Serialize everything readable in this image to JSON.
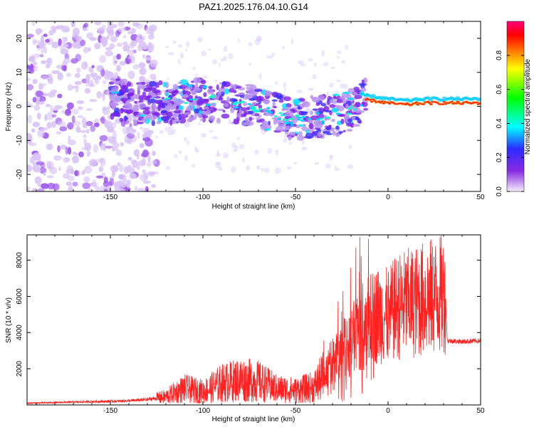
{
  "title": "PAZ1.2025.176.04.10.G14",
  "chart_data": [
    {
      "type": "heatmap",
      "xlabel": "Height of straight line (km)",
      "ylabel": "Frequency (Hz)",
      "xlim": [
        -195,
        50
      ],
      "ylim": [
        -25,
        25
      ],
      "xticks": [
        -150,
        -100,
        -50,
        0,
        50
      ],
      "yticks": [
        -20,
        -10,
        0,
        10,
        20
      ],
      "colorbar": {
        "label": "Normalized spectral amplitude",
        "range": [
          0,
          1
        ],
        "ticks": [
          "0.0",
          "0.2",
          "0.4",
          "0.6",
          "0.8"
        ],
        "tick_values": [
          0.0,
          0.2,
          0.4,
          0.6,
          0.8
        ],
        "colormap": [
          "#f5eefc",
          "#8a2be2",
          "#2b2bff",
          "#00ffff",
          "#00ff00",
          "#ffff00",
          "#ff8000",
          "#ff0000",
          "#ff0080"
        ]
      },
      "ridge": {
        "description_x": [
          -150,
          -140,
          -120,
          -100,
          -80,
          -60,
          -50,
          -40,
          -30,
          -20,
          -12,
          0,
          10,
          20,
          30,
          50
        ],
        "description_y": [
          3,
          1,
          1,
          2,
          1,
          -2,
          -4,
          -3,
          -3,
          -1,
          2,
          1,
          0.5,
          1,
          1,
          1
        ]
      }
    },
    {
      "type": "line",
      "xlabel": "Height of straight line (km)",
      "ylabel": "SNR (10 * v/v)",
      "xlim": [
        -195,
        50
      ],
      "ylim": [
        0,
        9400
      ],
      "xticks": [
        -150,
        -100,
        -50,
        0,
        50
      ],
      "yticks": [
        2000,
        4000,
        6000,
        8000
      ],
      "color": "#ff2020",
      "series": [
        {
          "x": [
            -195,
            -180,
            -160,
            -150,
            -140,
            -130,
            -120,
            -115,
            -110,
            -100,
            -90,
            -80,
            -70,
            -60,
            -50,
            -40,
            -35,
            -30,
            -25,
            -20,
            -17,
            -15,
            -12,
            -10,
            -5,
            0,
            5,
            10,
            15,
            20,
            25,
            30,
            31,
            32,
            40,
            50
          ],
          "y": [
            100,
            130,
            180,
            200,
            230,
            300,
            450,
            700,
            900,
            750,
            1200,
            1400,
            1300,
            900,
            800,
            1000,
            1600,
            2500,
            3000,
            3500,
            4000,
            4200,
            4300,
            4700,
            5000,
            4900,
            5400,
            5600,
            5700,
            5900,
            6000,
            6100,
            6150,
            3550,
            3500,
            3550
          ]
        }
      ]
    }
  ]
}
